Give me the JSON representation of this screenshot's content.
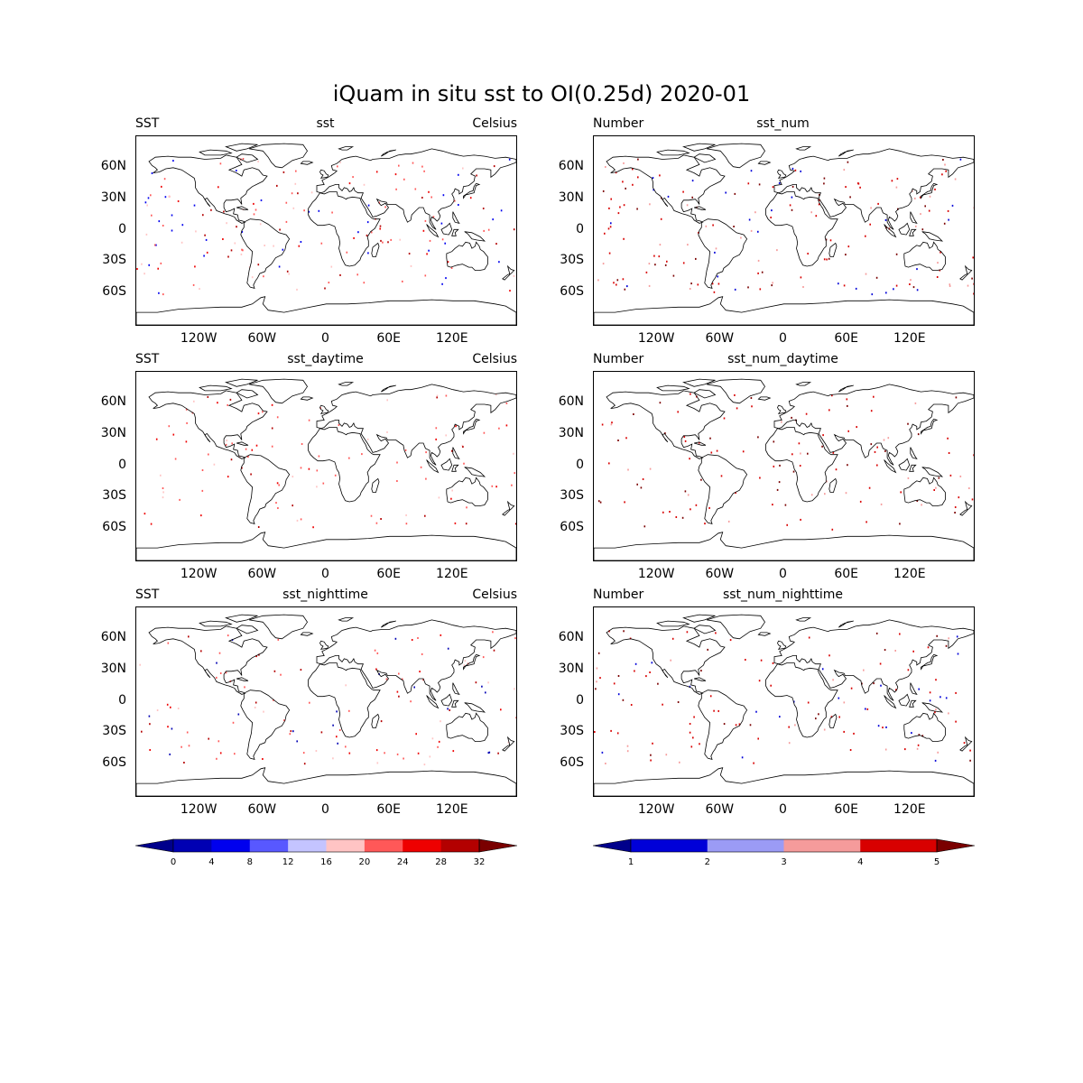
{
  "figure_title": "iQuam in situ sst to OI(0.25d) 2020-01",
  "panels": [
    {
      "left": "SST",
      "center": "sst",
      "right": "Celsius"
    },
    {
      "left": "Number",
      "center": "sst_num",
      "right": ""
    },
    {
      "left": "SST",
      "center": "sst_daytime",
      "right": "Celsius"
    },
    {
      "left": "Number",
      "center": "sst_num_daytime",
      "right": ""
    },
    {
      "left": "SST",
      "center": "sst_nighttime",
      "right": "Celsius"
    },
    {
      "left": "Number",
      "center": "sst_num_nighttime",
      "right": ""
    }
  ],
  "lat_ticks": [
    "60N",
    "30N",
    "0",
    "30S",
    "60S"
  ],
  "lon_ticks": [
    "120W",
    "60W",
    "0",
    "60E",
    "120E"
  ],
  "colorbars": [
    {
      "ticks": [
        "0",
        "4",
        "8",
        "12",
        "16",
        "20",
        "24",
        "28",
        "32"
      ],
      "colors": [
        "#00008b",
        "#0000b3",
        "#0000ee",
        "#5858ff",
        "#c4c4ff",
        "#ffc4c4",
        "#ff5858",
        "#ee0000",
        "#b30000",
        "#7a0000"
      ]
    },
    {
      "ticks": [
        "1",
        "2",
        "3",
        "4",
        "5"
      ],
      "colors": [
        "#00008b",
        "#0000d8",
        "#9b9bf5",
        "#f59b9b",
        "#d80000",
        "#7a0000"
      ]
    }
  ],
  "colors": {
    "ocean_bg": "#ffffff",
    "coast": "#000000"
  }
}
